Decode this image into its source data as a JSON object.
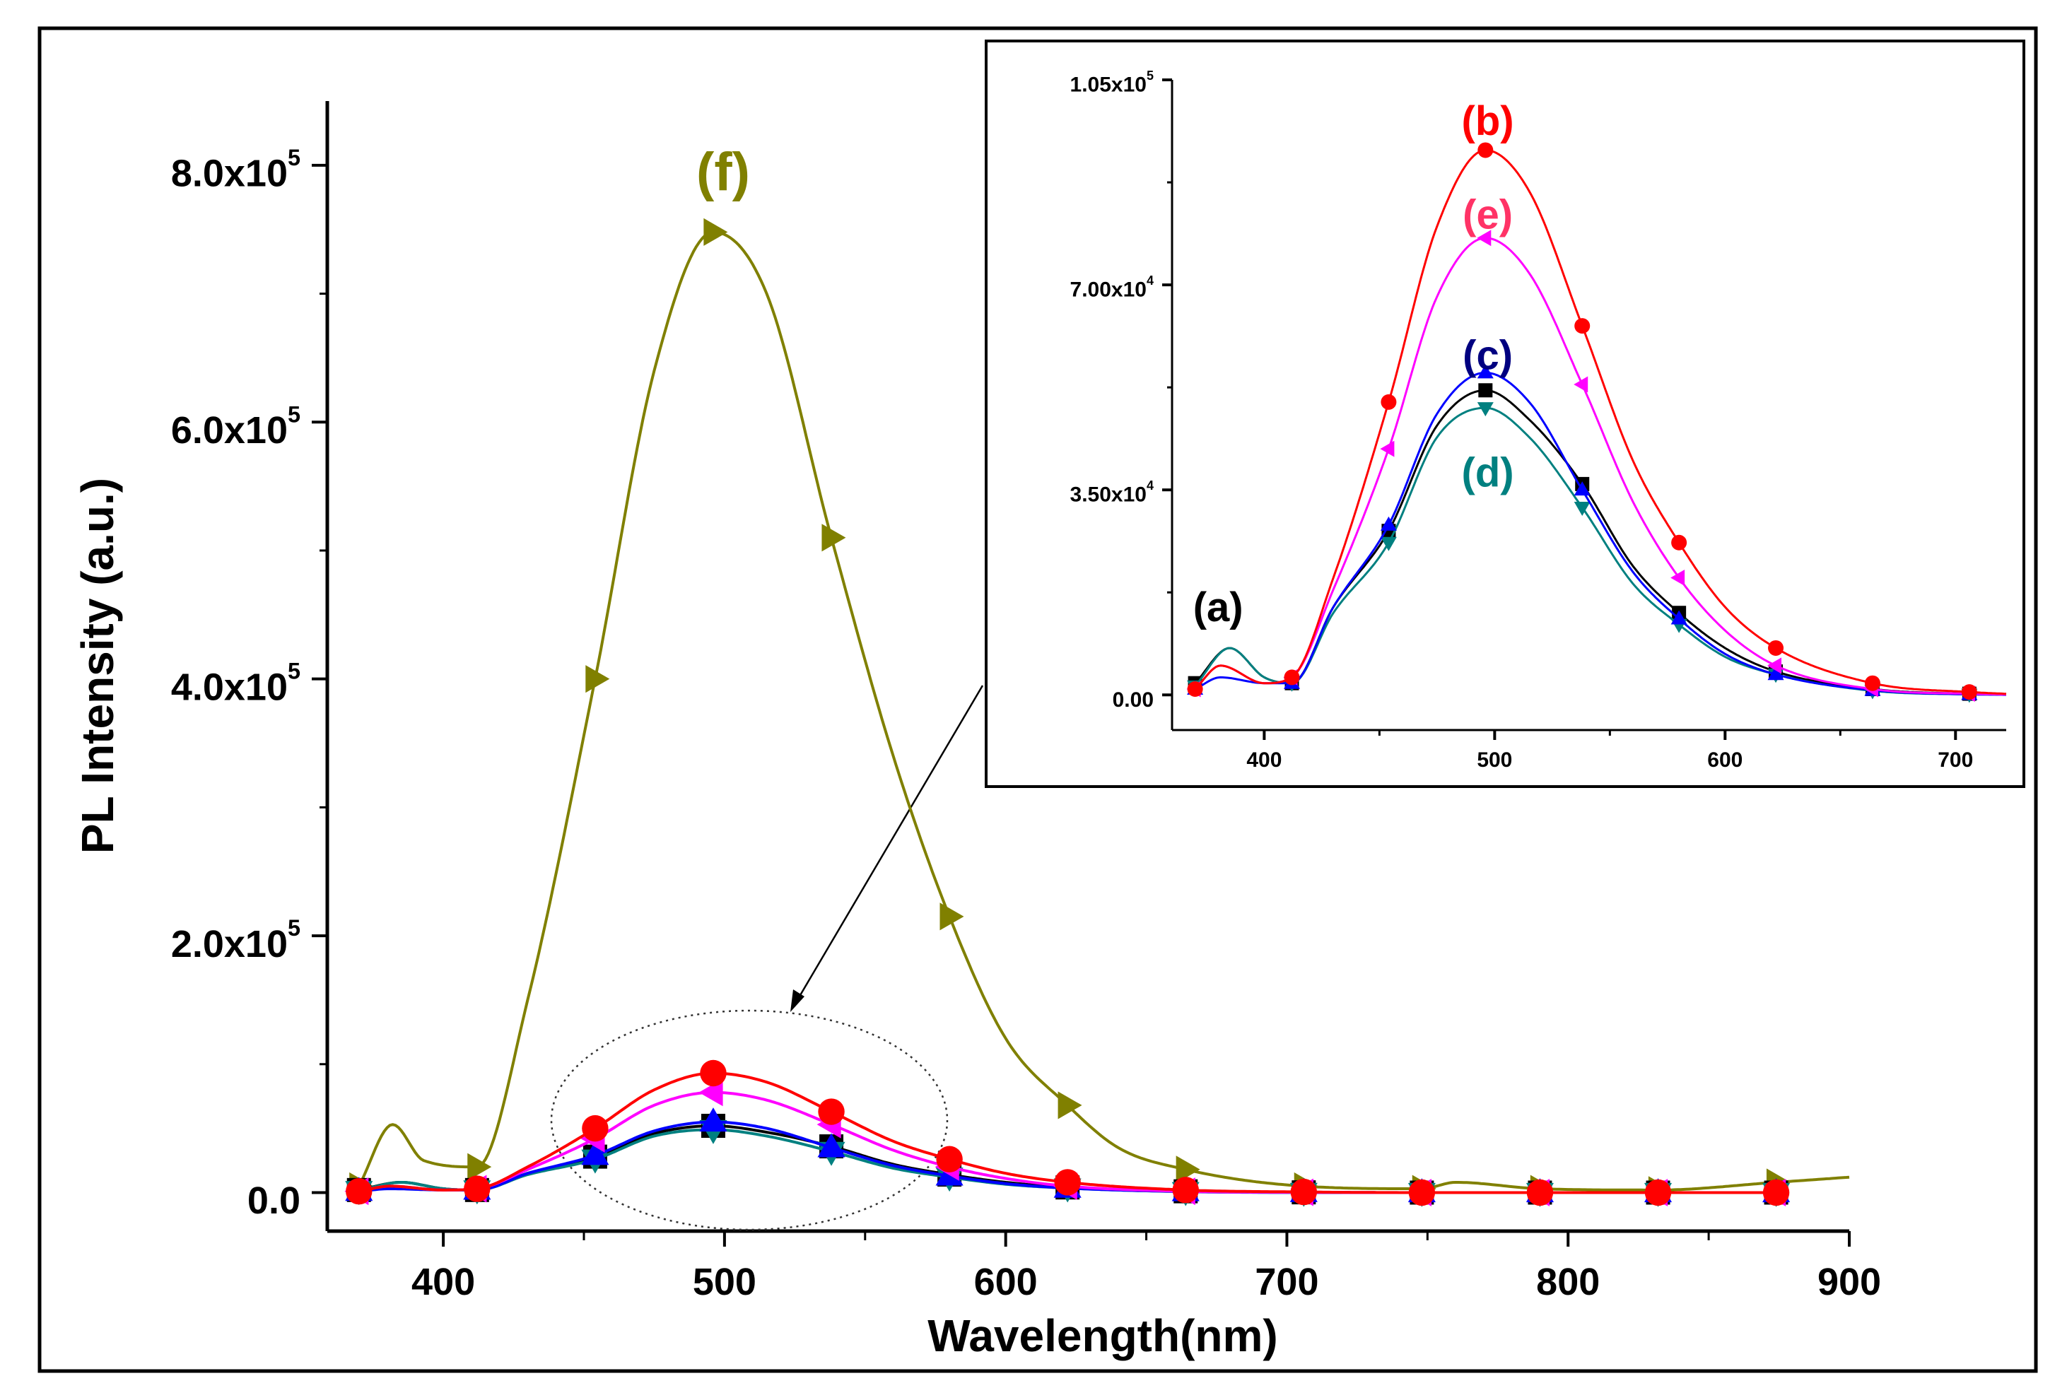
{
  "chart_data": [
    {
      "id": "main",
      "type": "line",
      "xlabel": "Wavelength(nm)",
      "ylabel": "PL Intensity (a.u.)",
      "xlim": [
        360,
        900
      ],
      "ylim": [
        -30000,
        850000
      ],
      "x_ticks": [
        400,
        500,
        600,
        700,
        800,
        900
      ],
      "x_tick_labels": [
        "400",
        "500",
        "600",
        "700",
        "800",
        "900"
      ],
      "y_ticks": [
        0,
        200000,
        400000,
        600000,
        800000
      ],
      "y_tick_labels": [
        {
          "mant": "0.0",
          "exp": ""
        },
        {
          "mant": "2.0x10",
          "exp": "5"
        },
        {
          "mant": "4.0x10",
          "exp": "5"
        },
        {
          "mant": "6.0x10",
          "exp": "5"
        },
        {
          "mant": "8.0x10",
          "exp": "5"
        }
      ],
      "annotation": "ellipse around 440–580 nm peaks with arrow pointing to inset",
      "curve_labels": [
        {
          "series": "f",
          "text": "(f)",
          "x": 495,
          "y": 795000
        }
      ],
      "series": [
        {
          "key": "a",
          "name": "(a)",
          "color": "#000000",
          "marker": "square",
          "x": [
            370,
            385,
            400,
            412,
            430,
            454,
            475,
            496,
            515,
            538,
            560,
            580,
            600,
            622,
            664,
            706,
            748,
            790,
            832,
            874
          ],
          "y": [
            2000,
            8000,
            3000,
            2000,
            15000,
            28000,
            46000,
            52000,
            47000,
            36000,
            22000,
            14000,
            8000,
            4000,
            1000,
            200,
            0,
            0,
            0,
            0
          ],
          "markers_x": [
            370,
            412,
            454,
            496,
            538,
            580,
            622,
            664,
            706,
            748,
            790,
            832,
            874
          ]
        },
        {
          "key": "b",
          "name": "(b)",
          "color": "#ff0000",
          "marker": "circle",
          "x": [
            370,
            381,
            400,
            412,
            430,
            454,
            475,
            496,
            515,
            538,
            560,
            580,
            600,
            622,
            664,
            706,
            748,
            790,
            832,
            874
          ],
          "y": [
            1000,
            5000,
            2000,
            3000,
            20000,
            50000,
            80000,
            93000,
            86000,
            63000,
            40000,
            26000,
            15000,
            8000,
            2000,
            500,
            0,
            0,
            0,
            0
          ],
          "markers_x": [
            370,
            412,
            454,
            496,
            538,
            580,
            622,
            664,
            706,
            748,
            790,
            832,
            874
          ]
        },
        {
          "key": "c",
          "name": "(c)",
          "color": "#0000ff",
          "marker": "triangle-up",
          "x": [
            370,
            381,
            400,
            412,
            430,
            454,
            475,
            496,
            515,
            538,
            560,
            580,
            600,
            622,
            664,
            706,
            748,
            790,
            832,
            874
          ],
          "y": [
            1000,
            3000,
            2000,
            2000,
            15000,
            29000,
            48000,
            55000,
            50000,
            35000,
            21000,
            13000,
            7000,
            3500,
            800,
            100,
            0,
            0,
            0,
            0
          ],
          "markers_x": [
            370,
            412,
            454,
            496,
            538,
            580,
            622,
            664,
            706,
            748,
            790,
            832,
            874
          ]
        },
        {
          "key": "d",
          "name": "(d)",
          "color": "#008080",
          "marker": "triangle-down",
          "x": [
            370,
            385,
            400,
            412,
            430,
            454,
            475,
            496,
            515,
            538,
            560,
            580,
            600,
            622,
            664,
            706,
            748,
            790,
            832,
            874
          ],
          "y": [
            1500,
            8000,
            3000,
            2000,
            14000,
            26000,
            44000,
            49000,
            44000,
            32000,
            19000,
            12000,
            6500,
            3500,
            700,
            100,
            0,
            0,
            0,
            0
          ],
          "markers_x": [
            370,
            412,
            454,
            496,
            538,
            580,
            622,
            664,
            706,
            748,
            790,
            832,
            874
          ]
        },
        {
          "key": "e",
          "name": "(e)",
          "color": "#ff00ff",
          "marker": "triangle-left",
          "x": [
            370,
            381,
            400,
            412,
            430,
            454,
            475,
            496,
            515,
            538,
            560,
            580,
            600,
            622,
            664,
            706,
            748,
            790,
            832,
            874
          ],
          "y": [
            1000,
            5000,
            2000,
            3000,
            18000,
            42000,
            68000,
            78000,
            72000,
            53000,
            33000,
            20000,
            11000,
            5000,
            1000,
            200,
            0,
            0,
            0,
            0
          ],
          "markers_x": [
            370,
            412,
            454,
            496,
            538,
            580,
            622,
            664,
            706,
            748,
            790,
            832,
            874
          ]
        },
        {
          "key": "f",
          "name": "(f)",
          "color": "#808000",
          "marker": "triangle-right",
          "x": [
            370,
            382,
            393,
            412,
            430,
            454,
            475,
            496,
            515,
            538,
            560,
            580,
            600,
            622,
            640,
            664,
            706,
            748,
            760,
            790,
            832,
            874,
            900
          ],
          "y": [
            5000,
            53000,
            25000,
            20000,
            150000,
            400000,
            640000,
            748000,
            700000,
            510000,
            340000,
            215000,
            120000,
            68000,
            35000,
            18000,
            5000,
            3000,
            8000,
            3000,
            2000,
            8000,
            12000
          ],
          "markers_x": [
            370,
            412,
            454,
            496,
            538,
            580,
            622,
            664,
            706,
            748,
            790,
            832,
            874
          ]
        }
      ]
    },
    {
      "id": "inset",
      "type": "line",
      "xlabel": "",
      "ylabel": "",
      "xlim": [
        360,
        722
      ],
      "ylim": [
        -6000,
        105000
      ],
      "x_ticks": [
        400,
        500,
        600,
        700
      ],
      "x_tick_labels": [
        "400",
        "500",
        "600",
        "700"
      ],
      "y_ticks": [
        0,
        35000,
        70000,
        105000
      ],
      "y_tick_labels": [
        {
          "mant": "0.00",
          "exp": ""
        },
        {
          "mant": "3.50x10",
          "exp": "4"
        },
        {
          "mant": "7.00x10",
          "exp": "4"
        },
        {
          "mant": "1.05x10",
          "exp": "5"
        }
      ],
      "curve_labels": [
        {
          "series": "a",
          "text": "(a)",
          "x": 380,
          "y": 15000
        },
        {
          "series": "b",
          "text": "(b)",
          "x": 497,
          "y": 98000
        },
        {
          "series": "e",
          "text": "(e)",
          "x": 497,
          "y": 82000
        },
        {
          "series": "c",
          "text": "(c)",
          "x": 497,
          "y": 58000
        },
        {
          "series": "d",
          "text": "(d)",
          "x": 497,
          "y": 38000
        }
      ]
    }
  ]
}
